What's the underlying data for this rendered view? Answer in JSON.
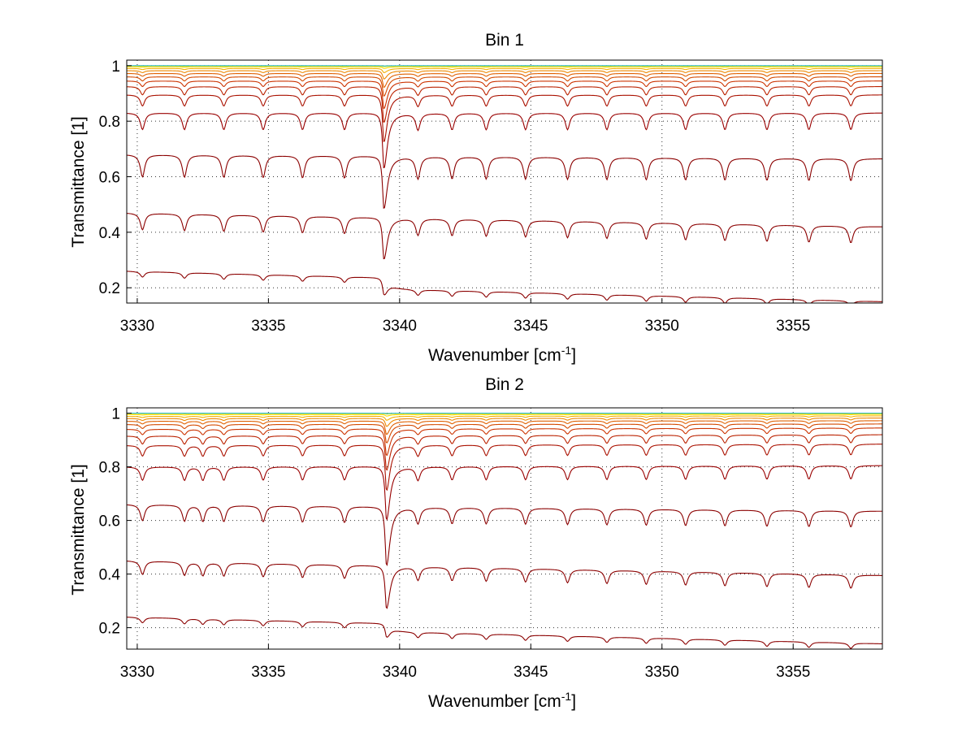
{
  "chart_data": [
    {
      "type": "line",
      "title": "Bin 1",
      "xlabel": "Wavenumber [cm",
      "xlabel_sup": "-1",
      "xlabel_end": "]",
      "ylabel": "Transmittance [1]",
      "xlim": [
        3329.6,
        3358.4
      ],
      "ylim": [
        0.145,
        1.02
      ],
      "xticks": [
        3330,
        3335,
        3340,
        3345,
        3350,
        3355
      ],
      "yticks": [
        0.2,
        0.4,
        0.6,
        0.8,
        1
      ],
      "ytick_labels": [
        "0.2",
        "0.4",
        "0.6",
        "0.8",
        "1"
      ],
      "grid": true,
      "legend": "none",
      "strong_line_x": 3339.4,
      "line_positions": [
        3330.2,
        3331.8,
        3333.3,
        3334.8,
        3336.3,
        3337.9,
        3340.7,
        3342.0,
        3343.3,
        3344.8,
        3346.4,
        3347.9,
        3349.4,
        3350.9,
        3352.4,
        3354.0,
        3355.6,
        3357.2
      ],
      "series": [
        {
          "color": "#8b0000",
          "baseline": 0.26,
          "baseline_end": 0.19,
          "main_depth": 0.06,
          "line_depth": 0.02,
          "step": 0.04
        },
        {
          "color": "#8b0000",
          "baseline": 0.47,
          "baseline_end": 0.42,
          "main_depth": 0.15,
          "line_depth": 0.06,
          "step": 0.0
        },
        {
          "color": "#8b0000",
          "baseline": 0.68,
          "baseline_end": 0.665,
          "main_depth": 0.19,
          "line_depth": 0.08,
          "step": 0.0
        },
        {
          "color": "#990000",
          "baseline": 0.83,
          "baseline_end": 0.83,
          "main_depth": 0.2,
          "line_depth": 0.06,
          "step": 0.0
        },
        {
          "color": "#aa1100",
          "baseline": 0.895,
          "baseline_end": 0.895,
          "main_depth": 0.17,
          "line_depth": 0.04,
          "step": 0.0
        },
        {
          "color": "#bb2200",
          "baseline": 0.925,
          "baseline_end": 0.925,
          "main_depth": 0.13,
          "line_depth": 0.03,
          "step": 0.0
        },
        {
          "color": "#cc3300",
          "baseline": 0.945,
          "baseline_end": 0.945,
          "main_depth": 0.1,
          "line_depth": 0.02,
          "step": 0.0
        },
        {
          "color": "#d44a00",
          "baseline": 0.96,
          "baseline_end": 0.96,
          "main_depth": 0.07,
          "line_depth": 0.015,
          "step": 0.0
        },
        {
          "color": "#e06000",
          "baseline": 0.972,
          "baseline_end": 0.972,
          "main_depth": 0.05,
          "line_depth": 0.01,
          "step": 0.0
        },
        {
          "color": "#ee8800",
          "baseline": 0.982,
          "baseline_end": 0.982,
          "main_depth": 0.03,
          "line_depth": 0.007,
          "step": 0.0
        },
        {
          "color": "#f5b000",
          "baseline": 0.99,
          "baseline_end": 0.99,
          "main_depth": 0.015,
          "line_depth": 0.004,
          "step": 0.0
        },
        {
          "color": "#ffdd00",
          "baseline": 0.996,
          "baseline_end": 0.996,
          "main_depth": 0.006,
          "line_depth": 0.002,
          "step": 0.0
        },
        {
          "color": "#c8e000",
          "baseline": 0.999,
          "baseline_end": 0.999,
          "main_depth": 0.002,
          "line_depth": 0.001,
          "step": 0.0
        },
        {
          "color": "#33bbcc",
          "baseline": 1.0,
          "baseline_end": 1.0,
          "main_depth": 0.001,
          "line_depth": 0.0,
          "step": 0.0
        }
      ]
    },
    {
      "type": "line",
      "title": "Bin 2",
      "xlabel": "Wavenumber [cm",
      "xlabel_sup": "-1",
      "xlabel_end": "]",
      "ylabel": "Transmittance [1]",
      "xlim": [
        3329.6,
        3358.4
      ],
      "ylim": [
        0.12,
        1.02
      ],
      "xticks": [
        3330,
        3335,
        3340,
        3345,
        3350,
        3355
      ],
      "yticks": [
        0.2,
        0.4,
        0.6,
        0.8,
        1
      ],
      "ytick_labels": [
        "0.2",
        "0.4",
        "0.6",
        "0.8",
        "1"
      ],
      "grid": true,
      "legend": "none",
      "strong_line_x": 3339.5,
      "line_positions": [
        3330.2,
        3331.8,
        3332.5,
        3333.3,
        3334.8,
        3336.3,
        3337.9,
        3340.7,
        3342.0,
        3343.3,
        3344.8,
        3346.4,
        3347.9,
        3349.4,
        3350.9,
        3352.4,
        3354.0,
        3355.6,
        3357.2
      ],
      "series": [
        {
          "color": "#8b0000",
          "baseline": 0.24,
          "baseline_end": 0.17,
          "main_depth": 0.05,
          "line_depth": 0.02,
          "step": 0.03
        },
        {
          "color": "#8b0000",
          "baseline": 0.45,
          "baseline_end": 0.395,
          "main_depth": 0.16,
          "line_depth": 0.05,
          "step": 0.0
        },
        {
          "color": "#8b0000",
          "baseline": 0.66,
          "baseline_end": 0.635,
          "main_depth": 0.22,
          "line_depth": 0.06,
          "step": 0.0
        },
        {
          "color": "#990000",
          "baseline": 0.8,
          "baseline_end": 0.805,
          "main_depth": 0.2,
          "line_depth": 0.05,
          "step": 0.0
        },
        {
          "color": "#aa1100",
          "baseline": 0.88,
          "baseline_end": 0.885,
          "main_depth": 0.17,
          "line_depth": 0.04,
          "step": 0.0
        },
        {
          "color": "#bb2200",
          "baseline": 0.915,
          "baseline_end": 0.92,
          "main_depth": 0.13,
          "line_depth": 0.03,
          "step": 0.0
        },
        {
          "color": "#cc3300",
          "baseline": 0.94,
          "baseline_end": 0.945,
          "main_depth": 0.1,
          "line_depth": 0.02,
          "step": 0.0
        },
        {
          "color": "#d44a00",
          "baseline": 0.958,
          "baseline_end": 0.96,
          "main_depth": 0.07,
          "line_depth": 0.015,
          "step": 0.0
        },
        {
          "color": "#e06000",
          "baseline": 0.97,
          "baseline_end": 0.972,
          "main_depth": 0.05,
          "line_depth": 0.01,
          "step": 0.0
        },
        {
          "color": "#ee8800",
          "baseline": 0.98,
          "baseline_end": 0.982,
          "main_depth": 0.03,
          "line_depth": 0.007,
          "step": 0.0
        },
        {
          "color": "#f5b000",
          "baseline": 0.988,
          "baseline_end": 0.99,
          "main_depth": 0.015,
          "line_depth": 0.004,
          "step": 0.0
        },
        {
          "color": "#ffdd00",
          "baseline": 0.995,
          "baseline_end": 0.996,
          "main_depth": 0.006,
          "line_depth": 0.002,
          "step": 0.0
        },
        {
          "color": "#c8e000",
          "baseline": 0.999,
          "baseline_end": 0.999,
          "main_depth": 0.002,
          "line_depth": 0.001,
          "step": 0.0
        },
        {
          "color": "#33bbcc",
          "baseline": 1.0,
          "baseline_end": 1.0,
          "main_depth": 0.001,
          "line_depth": 0.0,
          "step": 0.0
        }
      ]
    }
  ]
}
